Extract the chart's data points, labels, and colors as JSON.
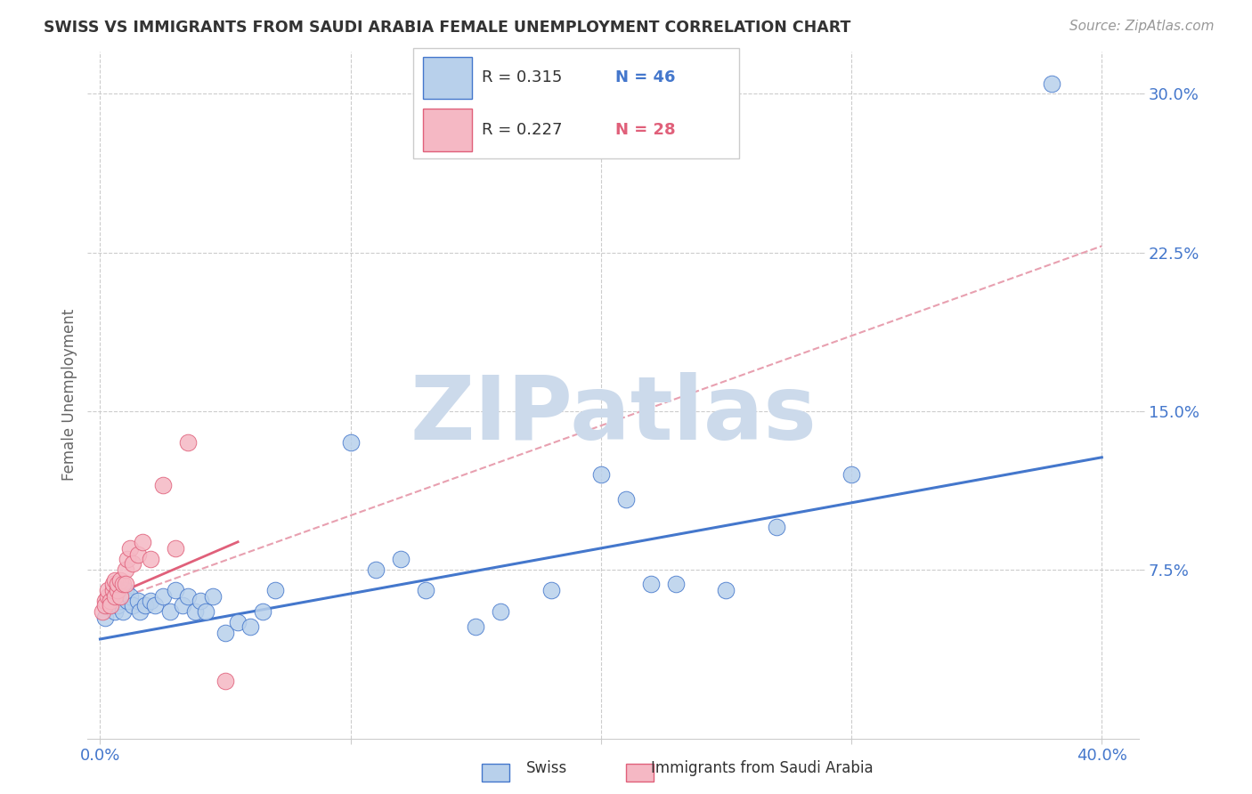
{
  "title": "SWISS VS IMMIGRANTS FROM SAUDI ARABIA FEMALE UNEMPLOYMENT CORRELATION CHART",
  "source": "Source: ZipAtlas.com",
  "ylabel_label": "Female Unemployment",
  "xlim": [
    -0.005,
    0.415
  ],
  "ylim": [
    -0.005,
    0.32
  ],
  "xticks": [
    0.0,
    0.1,
    0.2,
    0.3,
    0.4
  ],
  "yticks": [
    0.075,
    0.15,
    0.225,
    0.3
  ],
  "ytick_labels": [
    "7.5%",
    "15.0%",
    "22.5%",
    "30.0%"
  ],
  "blue_color": "#b8d0eb",
  "blue_line_color": "#4477cc",
  "pink_color": "#f5b8c4",
  "pink_line_color": "#e0607a",
  "pink_dash_color": "#e8a0b0",
  "grid_color": "#cccccc",
  "watermark_color": "#ccdaeb",
  "blue_line_x0": 0.0,
  "blue_line_y0": 0.042,
  "blue_line_x1": 0.4,
  "blue_line_y1": 0.128,
  "pink_line_x0": 0.0,
  "pink_line_y0": 0.058,
  "pink_line_x1": 0.4,
  "pink_line_y1": 0.228,
  "blue_scatter_x": [
    0.002,
    0.003,
    0.004,
    0.005,
    0.006,
    0.007,
    0.008,
    0.009,
    0.01,
    0.011,
    0.012,
    0.013,
    0.015,
    0.016,
    0.018,
    0.02,
    0.022,
    0.025,
    0.028,
    0.03,
    0.033,
    0.035,
    0.038,
    0.04,
    0.042,
    0.045,
    0.05,
    0.055,
    0.06,
    0.065,
    0.07,
    0.1,
    0.11,
    0.12,
    0.13,
    0.15,
    0.16,
    0.18,
    0.2,
    0.21,
    0.22,
    0.23,
    0.25,
    0.27,
    0.3,
    0.38
  ],
  "blue_scatter_y": [
    0.052,
    0.058,
    0.06,
    0.062,
    0.055,
    0.058,
    0.06,
    0.055,
    0.065,
    0.06,
    0.062,
    0.058,
    0.06,
    0.055,
    0.058,
    0.06,
    0.058,
    0.062,
    0.055,
    0.065,
    0.058,
    0.062,
    0.055,
    0.06,
    0.055,
    0.062,
    0.045,
    0.05,
    0.048,
    0.055,
    0.065,
    0.135,
    0.075,
    0.08,
    0.065,
    0.048,
    0.055,
    0.065,
    0.12,
    0.108,
    0.068,
    0.068,
    0.065,
    0.095,
    0.12,
    0.305
  ],
  "pink_scatter_x": [
    0.001,
    0.002,
    0.002,
    0.003,
    0.003,
    0.004,
    0.004,
    0.005,
    0.005,
    0.006,
    0.006,
    0.007,
    0.007,
    0.008,
    0.008,
    0.009,
    0.01,
    0.01,
    0.011,
    0.012,
    0.013,
    0.015,
    0.017,
    0.02,
    0.025,
    0.03,
    0.035,
    0.05
  ],
  "pink_scatter_y": [
    0.055,
    0.06,
    0.058,
    0.062,
    0.065,
    0.06,
    0.058,
    0.065,
    0.068,
    0.062,
    0.07,
    0.065,
    0.068,
    0.062,
    0.07,
    0.068,
    0.075,
    0.068,
    0.08,
    0.085,
    0.078,
    0.082,
    0.088,
    0.08,
    0.115,
    0.085,
    0.135,
    0.022
  ]
}
